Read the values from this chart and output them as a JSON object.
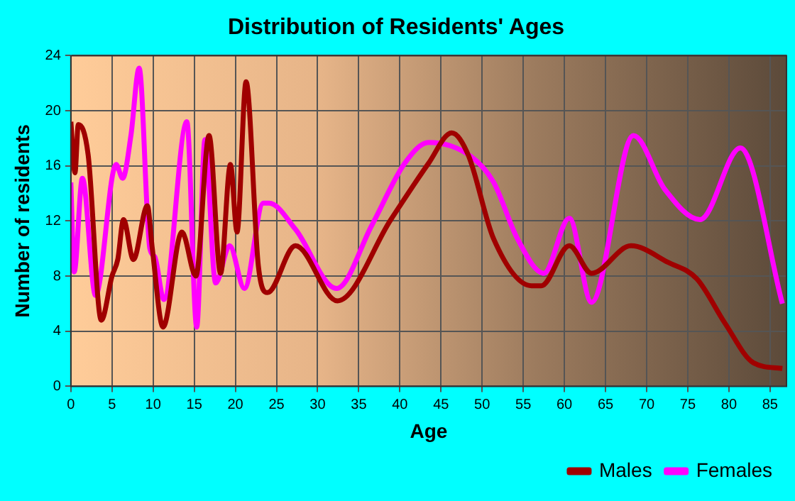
{
  "chart_data": {
    "type": "line",
    "title": "Distribution of Residents' Ages",
    "xlabel": "Age",
    "ylabel": "Number of residents",
    "xlim": [
      0,
      87
    ],
    "xticks": [
      0,
      5,
      10,
      15,
      20,
      25,
      30,
      35,
      40,
      45,
      50,
      55,
      60,
      65,
      70,
      75,
      80,
      85
    ],
    "ylim": [
      0,
      24
    ],
    "yticks": [
      0,
      4,
      8,
      12,
      16,
      20,
      24
    ],
    "grid": true,
    "legend": "bottom right",
    "series": [
      {
        "name": "Males",
        "color": "#a00000",
        "x": [
          0,
          0.5,
          0.9,
          2.1,
          3.7,
          5,
          5.7,
          6.4,
          7.6,
          9.3,
          9.9,
          11.2,
          13.5,
          15.2,
          16.8,
          18.2,
          19.4,
          20.2,
          21.3,
          22.8,
          23.9,
          27.3,
          32.4,
          38.9,
          43.5,
          46.3,
          48.3,
          51.4,
          56,
          57.2,
          60.6,
          63.3,
          68.1,
          72.6,
          76.1,
          79.5,
          83,
          86.5
        ],
        "values": [
          19.2,
          15.5,
          19,
          16.8,
          4.8,
          8,
          9.2,
          12.1,
          9.2,
          13.1,
          10,
          4.3,
          11.2,
          8,
          18.2,
          8.2,
          16.1,
          11.2,
          22.1,
          8.7,
          6.8,
          10.2,
          6.2,
          12.1,
          16.2,
          18.4,
          16.8,
          10.7,
          7.3,
          7.3,
          10.2,
          8.2,
          10.2,
          9,
          7.8,
          4.6,
          1.7,
          1.3
        ]
      },
      {
        "name": "Females",
        "color": "#ff00ff",
        "x": [
          0,
          0.4,
          1.4,
          3,
          5.5,
          6.3,
          7.3,
          8.3,
          9.6,
          10.2,
          11.3,
          14.1,
          15.3,
          16.3,
          17.6,
          19.3,
          21.1,
          23.4,
          24.1,
          27.3,
          32.3,
          36.6,
          40.6,
          43.5,
          48.6,
          51.4,
          54.3,
          57.5,
          60.6,
          63.3,
          68.4,
          72.2,
          76.5,
          81.4,
          86.5
        ],
        "values": [
          14.8,
          8.3,
          15.1,
          6.6,
          16.1,
          15.1,
          18.2,
          23.1,
          10,
          9.4,
          6.3,
          19.2,
          4.3,
          17.9,
          7.5,
          10.2,
          7.1,
          13.3,
          13.3,
          11.4,
          7.1,
          11.7,
          16.2,
          17.7,
          16.7,
          14.8,
          10.7,
          8.2,
          12.2,
          6.1,
          18.2,
          14.3,
          12.1,
          17.3,
          6
        ]
      }
    ]
  }
}
